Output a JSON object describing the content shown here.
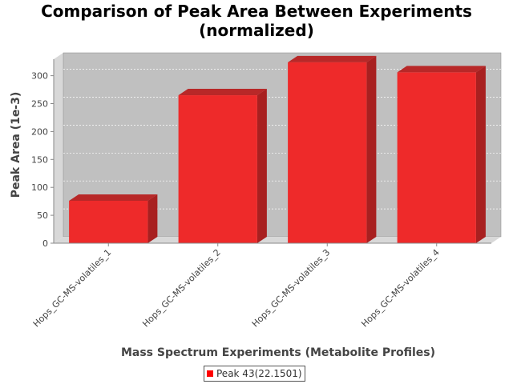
{
  "chart_data": {
    "type": "bar",
    "title_line1": "Comparison of Peak Area Between Experiments",
    "title_line2": "(normalized)",
    "xlabel": "Mass Spectrum Experiments (Metabolite Profiles)",
    "ylabel": "Peak Area (1e-3)",
    "categories": [
      "Hops_GC-MS-volatiles_1",
      "Hops_GC-MS-volatiles_2",
      "Hops_GC-MS-volatiles_3",
      "Hops_GC-MS-volatiles_4"
    ],
    "series": [
      {
        "name": "Peak 43(22.1501)",
        "values": [
          76,
          265,
          324,
          306
        ],
        "color": "#ee2a2a"
      }
    ],
    "ylim": [
      0,
      341
    ],
    "yticks": [
      0,
      50,
      100,
      150,
      200,
      250,
      300
    ],
    "grid": true,
    "legend_position": "bottom",
    "plot_background": "#c0c0c0"
  }
}
